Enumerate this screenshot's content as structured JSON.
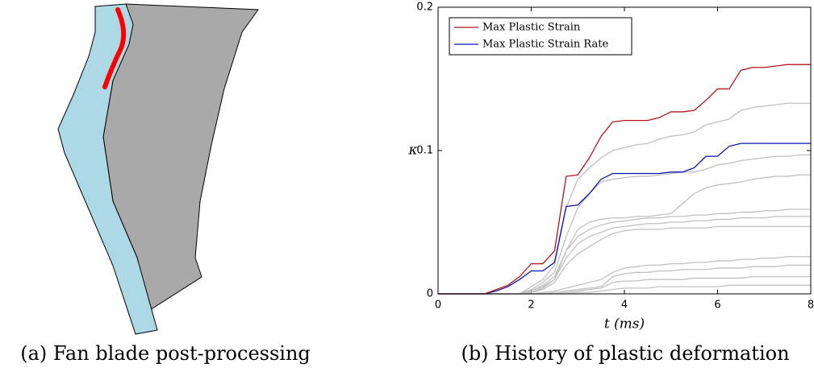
{
  "figure": {
    "captions": [
      "(a) Fan blade post-processing",
      "(b) History of plastic deformation"
    ]
  },
  "chart_data": {
    "type": "line",
    "xlabel": "t (ms)",
    "ylabel": "κ",
    "x": [
      0,
      0.25,
      0.5,
      0.75,
      1,
      1.25,
      1.5,
      1.75,
      2,
      2.25,
      2.5,
      2.75,
      3,
      3.25,
      3.5,
      3.75,
      4,
      4.25,
      4.5,
      4.75,
      5,
      5.25,
      5.5,
      5.75,
      6,
      6.25,
      6.5,
      6.75,
      7,
      7.25,
      7.5,
      7.75,
      8
    ],
    "xlim": [
      0,
      8
    ],
    "xticks": [
      0,
      2,
      4,
      6,
      8
    ],
    "ylim": [
      0,
      0.2
    ],
    "yticks": [
      0,
      0.1,
      0.2
    ],
    "legend": "upper left",
    "series": [
      {
        "color": "#c0c0c0",
        "values": [
          0,
          0,
          0,
          0,
          0,
          0,
          0,
          0,
          0.005,
          0.01,
          0.02,
          0.06,
          0.08,
          0.088,
          0.095,
          0.1,
          0.102,
          0.104,
          0.105,
          0.108,
          0.11,
          0.111,
          0.113,
          0.118,
          0.12,
          0.122,
          0.128,
          0.13,
          0.131,
          0.132,
          0.133,
          0.133,
          0.133
        ]
      },
      {
        "color": "#c0c0c0",
        "values": [
          0,
          0,
          0,
          0,
          0,
          0,
          0,
          0,
          0.003,
          0.008,
          0.015,
          0.04,
          0.06,
          0.07,
          0.078,
          0.08,
          0.081,
          0.082,
          0.082,
          0.083,
          0.084,
          0.085,
          0.085,
          0.087,
          0.09,
          0.091,
          0.093,
          0.094,
          0.095,
          0.096,
          0.096,
          0.097,
          0.097
        ]
      },
      {
        "color": "#c0c0c0",
        "values": [
          0,
          0,
          0,
          0,
          0,
          0,
          0,
          0,
          0.002,
          0.005,
          0.01,
          0.03,
          0.045,
          0.05,
          0.052,
          0.053,
          0.053,
          0.054,
          0.054,
          0.055,
          0.056,
          0.063,
          0.07,
          0.074,
          0.076,
          0.077,
          0.078,
          0.08,
          0.081,
          0.082,
          0.082,
          0.083,
          0.083
        ]
      },
      {
        "color": "#c0c0c0",
        "values": [
          0,
          0,
          0,
          0,
          0,
          0,
          0,
          0,
          0.002,
          0.006,
          0.012,
          0.03,
          0.04,
          0.045,
          0.048,
          0.05,
          0.051,
          0.052,
          0.053,
          0.053,
          0.054,
          0.054,
          0.055,
          0.055,
          0.056,
          0.056,
          0.057,
          0.057,
          0.058,
          0.058,
          0.059,
          0.059,
          0.059
        ]
      },
      {
        "color": "#c0c0c0",
        "values": [
          0,
          0,
          0,
          0,
          0,
          0,
          0,
          0,
          0.001,
          0.004,
          0.01,
          0.025,
          0.035,
          0.04,
          0.043,
          0.046,
          0.047,
          0.048,
          0.049,
          0.049,
          0.05,
          0.05,
          0.051,
          0.051,
          0.052,
          0.052,
          0.053,
          0.053,
          0.053,
          0.054,
          0.054,
          0.054,
          0.054
        ]
      },
      {
        "color": "#c0c0c0",
        "values": [
          0,
          0,
          0,
          0,
          0,
          0,
          0,
          0,
          0.001,
          0.003,
          0.008,
          0.02,
          0.028,
          0.033,
          0.038,
          0.042,
          0.044,
          0.045,
          0.045,
          0.045,
          0.046,
          0.046,
          0.046,
          0.046,
          0.047,
          0.047,
          0.047,
          0.047,
          0.047,
          0.047,
          0.047,
          0.047,
          0.047
        ]
      },
      {
        "color": "#c0c0c0",
        "values": [
          0,
          0,
          0,
          0,
          0,
          0,
          0,
          0,
          0,
          0.001,
          0.002,
          0.004,
          0.006,
          0.008,
          0.01,
          0.015,
          0.018,
          0.019,
          0.02,
          0.02,
          0.021,
          0.021,
          0.022,
          0.022,
          0.023,
          0.023,
          0.024,
          0.024,
          0.025,
          0.025,
          0.026,
          0.026,
          0.026
        ]
      },
      {
        "color": "#c0c0c0",
        "values": [
          0,
          0,
          0,
          0,
          0,
          0,
          0,
          0,
          0,
          0,
          0.001,
          0.002,
          0.003,
          0.004,
          0.005,
          0.012,
          0.014,
          0.015,
          0.015,
          0.016,
          0.016,
          0.017,
          0.017,
          0.017,
          0.018,
          0.018,
          0.018,
          0.019,
          0.019,
          0.019,
          0.02,
          0.02,
          0.02
        ]
      },
      {
        "color": "#c0c0c0",
        "values": [
          0,
          0,
          0,
          0,
          0,
          0,
          0,
          0,
          0,
          0,
          0,
          0.001,
          0.002,
          0.003,
          0.004,
          0.008,
          0.009,
          0.009,
          0.01,
          0.01,
          0.01,
          0.01,
          0.011,
          0.011,
          0.011,
          0.011,
          0.011,
          0.012,
          0.012,
          0.012,
          0.012,
          0.012,
          0.012
        ]
      },
      {
        "color": "#c0c0c0",
        "values": [
          0,
          0,
          0,
          0,
          0,
          0,
          0,
          0,
          0,
          0,
          0,
          0,
          0.001,
          0.001,
          0.002,
          0.003,
          0.004,
          0.004,
          0.004,
          0.005,
          0.005,
          0.005,
          0.005,
          0.005,
          0.005,
          0.006,
          0.006,
          0.006,
          0.006,
          0.006,
          0.006,
          0.006,
          0.006
        ]
      },
      {
        "name": "Max Plastic Strain Rate",
        "color": "#0a14b4",
        "values": [
          0,
          0,
          0,
          0,
          0,
          0.002,
          0.005,
          0.01,
          0.016,
          0.016,
          0.022,
          0.061,
          0.062,
          0.07,
          0.08,
          0.084,
          0.084,
          0.084,
          0.084,
          0.084,
          0.085,
          0.085,
          0.088,
          0.096,
          0.096,
          0.103,
          0.105,
          0.105,
          0.105,
          0.105,
          0.105,
          0.105,
          0.105
        ]
      },
      {
        "name": "Max Plastic Strain",
        "color": "#b4141e",
        "values": [
          0,
          0,
          0,
          0,
          0,
          0.003,
          0.006,
          0.012,
          0.021,
          0.021,
          0.03,
          0.082,
          0.083,
          0.095,
          0.11,
          0.12,
          0.121,
          0.121,
          0.121,
          0.123,
          0.127,
          0.127,
          0.128,
          0.135,
          0.143,
          0.143,
          0.156,
          0.158,
          0.158,
          0.159,
          0.16,
          0.16,
          0.16
        ]
      }
    ]
  }
}
